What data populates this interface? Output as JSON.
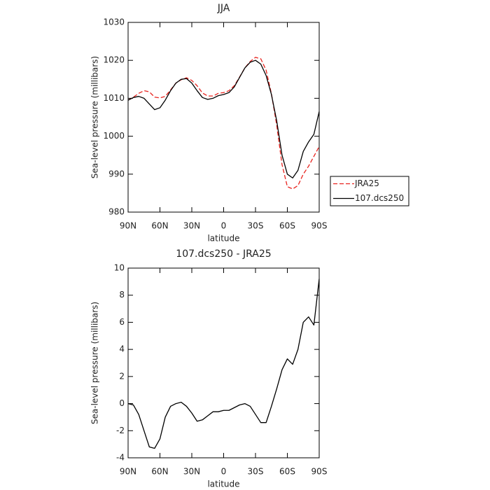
{
  "chart_data": [
    {
      "type": "line",
      "title": "JJA",
      "xlabel": "latitude",
      "ylabel": "Sea-level pressure (millibars)",
      "x": [
        90,
        85,
        80,
        75,
        70,
        65,
        60,
        55,
        50,
        45,
        40,
        35,
        30,
        25,
        20,
        15,
        10,
        5,
        0,
        -5,
        -10,
        -15,
        -20,
        -25,
        -30,
        -35,
        -40,
        -45,
        -50,
        -55,
        -60,
        -65,
        -70,
        -75,
        -80,
        -85,
        -90
      ],
      "xlim": [
        90,
        -90
      ],
      "xticks": [
        {
          "value": 90,
          "label": "90N"
        },
        {
          "value": 60,
          "label": "60N"
        },
        {
          "value": 30,
          "label": "30N"
        },
        0,
        {
          "value": -30,
          "label": "30S"
        },
        {
          "value": -60,
          "label": "60S"
        },
        {
          "value": -90,
          "label": "90S"
        }
      ],
      "ylim": [
        980,
        1030
      ],
      "yticks": [
        980,
        990,
        1000,
        1010,
        1020,
        1030
      ],
      "legend": "outside-right",
      "series": [
        {
          "name": "JRA25",
          "color": "#e8231e",
          "dash": true,
          "values": [
            1009.5,
            1010.3,
            1011.3,
            1012,
            1011.7,
            1010.3,
            1010.1,
            1010.5,
            1012.2,
            1014,
            1014.9,
            1015.4,
            1014.7,
            1013.3,
            1011.4,
            1010.6,
            1010.6,
            1011.3,
            1011.5,
            1012,
            1013.3,
            1015.6,
            1018,
            1019.7,
            1020.8,
            1020.4,
            1017.4,
            1011.2,
            1002.9,
            992.5,
            986.7,
            986.1,
            987,
            990,
            992.1,
            994.7,
            997.3
          ]
        },
        {
          "name": "107.dcs250",
          "color": "#000000",
          "dash": false,
          "values": [
            1009.5,
            1010.2,
            1010.5,
            1010,
            1008.5,
            1007,
            1007.5,
            1009.5,
            1012,
            1014,
            1015,
            1015.2,
            1014,
            1012,
            1010.2,
            1009.7,
            1010,
            1010.7,
            1011,
            1011.5,
            1013,
            1015.5,
            1018,
            1019.5,
            1020,
            1019,
            1016,
            1011,
            1004,
            995,
            990,
            989,
            991,
            996,
            998.5,
            1000.5,
            1006.5
          ]
        }
      ]
    },
    {
      "type": "line",
      "title": "107.dcs250 - JRA25",
      "xlabel": "latitude",
      "ylabel": "Sea-level pressure (millibars)",
      "x": [
        90,
        85,
        80,
        75,
        70,
        65,
        60,
        55,
        50,
        45,
        40,
        35,
        30,
        25,
        20,
        15,
        10,
        5,
        0,
        -5,
        -10,
        -15,
        -20,
        -25,
        -30,
        -35,
        -40,
        -45,
        -50,
        -55,
        -60,
        -65,
        -70,
        -75,
        -80,
        -85,
        -90
      ],
      "xlim": [
        90,
        -90
      ],
      "xticks": [
        {
          "value": 90,
          "label": "90N"
        },
        {
          "value": 60,
          "label": "60N"
        },
        {
          "value": 30,
          "label": "30N"
        },
        0,
        {
          "value": -30,
          "label": "30S"
        },
        {
          "value": -60,
          "label": "60S"
        },
        {
          "value": -90,
          "label": "90S"
        }
      ],
      "ylim": [
        -4,
        10
      ],
      "yticks": [
        -4,
        -2,
        0,
        2,
        4,
        6,
        8,
        10
      ],
      "series": [
        {
          "color": "#000000",
          "dash": false,
          "values": [
            0,
            -0.1,
            -0.8,
            -2,
            -3.2,
            -3.3,
            -2.6,
            -1,
            -0.2,
            0,
            0.1,
            -0.2,
            -0.7,
            -1.3,
            -1.2,
            -0.9,
            -0.6,
            -0.6,
            -0.5,
            -0.5,
            -0.3,
            -0.1,
            0,
            -0.2,
            -0.8,
            -1.4,
            -1.4,
            -0.2,
            1.1,
            2.5,
            3.3,
            2.9,
            4,
            6,
            6.4,
            5.8,
            9.2
          ]
        }
      ]
    }
  ]
}
